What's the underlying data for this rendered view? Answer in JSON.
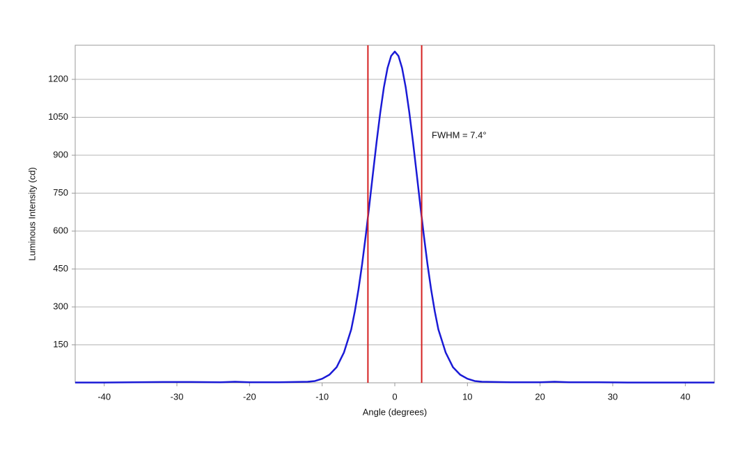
{
  "chart_data": {
    "type": "line",
    "xlabel": "Angle (degrees)",
    "ylabel": "Luminous Intensity (cd)",
    "annotation": "FWHM = 7.4°",
    "x": [
      -44,
      -40,
      -36,
      -32,
      -28,
      -24,
      -22,
      -20,
      -16,
      -14,
      -12,
      -11,
      -10,
      -9,
      -8,
      -7,
      -6,
      -5.5,
      -5,
      -4.5,
      -4,
      -3.5,
      -3,
      -2.5,
      -2,
      -1.5,
      -1,
      -0.5,
      0,
      0.5,
      1,
      1.5,
      2,
      2.5,
      3,
      3.5,
      4,
      4.5,
      5,
      5.5,
      6,
      7,
      8,
      9,
      10,
      11,
      12,
      14,
      16,
      20,
      22,
      24,
      28,
      32,
      36,
      40,
      44
    ],
    "values": [
      1,
      1,
      2,
      3,
      3,
      2,
      4,
      2,
      2,
      3,
      4,
      7,
      16,
      32,
      62,
      120,
      211,
      283,
      369,
      469,
      582,
      704,
      830,
      954,
      1069,
      1169,
      1245,
      1293,
      1310,
      1293,
      1245,
      1169,
      1069,
      954,
      830,
      704,
      582,
      469,
      369,
      283,
      211,
      120,
      62,
      32,
      16,
      7,
      4,
      3,
      2,
      2,
      4,
      2,
      2,
      1,
      1,
      1,
      1
    ],
    "color": "#1a1ad6",
    "vlines": [
      {
        "x": -3.7,
        "color": "#d42020"
      },
      {
        "x": 3.7,
        "color": "#d42020"
      }
    ],
    "xlim": [
      -44,
      44
    ],
    "ylim": [
      0,
      1335
    ],
    "xticks": [
      -40,
      -30,
      -20,
      -10,
      0,
      10,
      20,
      30,
      40
    ],
    "yticks": [
      150,
      300,
      450,
      600,
      750,
      900,
      1050,
      1200
    ],
    "grid": true
  }
}
